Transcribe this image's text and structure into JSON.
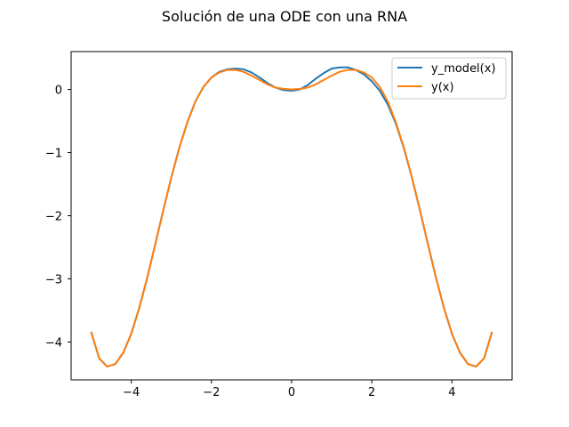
{
  "chart_data": {
    "type": "line",
    "title": "Solución de una ODE con una RNA",
    "xlabel": "",
    "ylabel": "",
    "xlim": [
      -5.5,
      5.5
    ],
    "ylim": [
      -4.6,
      0.6
    ],
    "grid": false,
    "legend_position": "top-right",
    "xticks": [
      {
        "value": -4,
        "label": "−4"
      },
      {
        "value": -2,
        "label": "−2"
      },
      {
        "value": 0,
        "label": "0"
      },
      {
        "value": 2,
        "label": "2"
      },
      {
        "value": 4,
        "label": "4"
      }
    ],
    "yticks": [
      {
        "value": 0,
        "label": "0"
      },
      {
        "value": -1,
        "label": "−1"
      },
      {
        "value": -2,
        "label": "−2"
      },
      {
        "value": -3,
        "label": "−3"
      },
      {
        "value": -4,
        "label": "−4"
      }
    ],
    "series": [
      {
        "name": "y_model(x)",
        "color": "#1f77b4",
        "x": [
          -5.0,
          -4.8,
          -4.6,
          -4.4,
          -4.2,
          -4.0,
          -3.8,
          -3.6,
          -3.4,
          -3.2,
          -3.0,
          -2.8,
          -2.6,
          -2.4,
          -2.2,
          -2.0,
          -1.8,
          -1.6,
          -1.4,
          -1.2,
          -1.0,
          -0.8,
          -0.6,
          -0.4,
          -0.2,
          0.0,
          0.2,
          0.4,
          0.6,
          0.8,
          1.0,
          1.2,
          1.4,
          1.6,
          1.8,
          2.0,
          2.2,
          2.4,
          2.6,
          2.8,
          3.0,
          3.2,
          3.4,
          3.6,
          3.8,
          4.0,
          4.2,
          4.4,
          4.6,
          4.8,
          5.0
        ],
        "y": [
          -3.84,
          -4.26,
          -4.39,
          -4.35,
          -4.17,
          -3.87,
          -3.46,
          -2.98,
          -2.45,
          -1.91,
          -1.39,
          -0.92,
          -0.52,
          -0.19,
          0.04,
          0.19,
          0.28,
          0.32,
          0.33,
          0.32,
          0.27,
          0.19,
          0.1,
          0.03,
          -0.01,
          -0.02,
          0.0,
          0.07,
          0.17,
          0.26,
          0.33,
          0.35,
          0.35,
          0.31,
          0.24,
          0.13,
          -0.02,
          -0.24,
          -0.54,
          -0.93,
          -1.39,
          -1.91,
          -2.45,
          -2.98,
          -3.46,
          -3.87,
          -4.17,
          -4.35,
          -4.39,
          -4.26,
          -3.84
        ]
      },
      {
        "name": "y(x)",
        "color": "#ff7f0e",
        "x": [
          -5.0,
          -4.8,
          -4.6,
          -4.4,
          -4.2,
          -4.0,
          -3.8,
          -3.6,
          -3.4,
          -3.2,
          -3.0,
          -2.8,
          -2.6,
          -2.4,
          -2.2,
          -2.0,
          -1.8,
          -1.6,
          -1.4,
          -1.2,
          -1.0,
          -0.8,
          -0.6,
          -0.4,
          -0.2,
          0.0,
          0.2,
          0.4,
          0.6,
          0.8,
          1.0,
          1.2,
          1.4,
          1.6,
          1.8,
          2.0,
          2.2,
          2.4,
          2.6,
          2.8,
          3.0,
          3.2,
          3.4,
          3.6,
          3.8,
          4.0,
          4.2,
          4.4,
          4.6,
          4.8,
          5.0
        ],
        "y": [
          -3.84,
          -4.26,
          -4.39,
          -4.35,
          -4.17,
          -3.87,
          -3.46,
          -2.98,
          -2.45,
          -1.91,
          -1.39,
          -0.92,
          -0.52,
          -0.19,
          0.04,
          0.19,
          0.27,
          0.31,
          0.31,
          0.28,
          0.22,
          0.15,
          0.08,
          0.03,
          0.01,
          0.0,
          0.01,
          0.03,
          0.08,
          0.15,
          0.22,
          0.28,
          0.31,
          0.31,
          0.27,
          0.19,
          0.04,
          -0.19,
          -0.52,
          -0.92,
          -1.39,
          -1.91,
          -2.45,
          -2.98,
          -3.46,
          -3.87,
          -4.17,
          -4.35,
          -4.39,
          -4.26,
          -3.84
        ]
      }
    ]
  }
}
